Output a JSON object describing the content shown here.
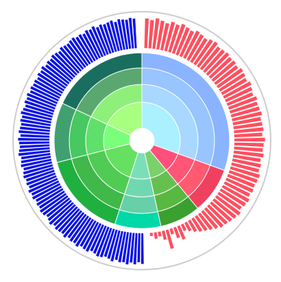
{
  "chart_data": {
    "type": "sunburst",
    "title": "",
    "outer_ring": {
      "type": "radial-bar",
      "ylim": [
        0,
        1
      ],
      "series": [
        {
          "color": "#ff4f5e",
          "values": [
            0.92,
            0.88,
            0.95,
            0.9,
            0.85,
            0.93,
            0.89,
            0.96,
            0.91,
            0.87,
            0.94,
            0.9,
            0.86,
            0.92,
            0.95,
            0.88,
            0.9,
            0.93,
            0.89,
            0.91,
            0.87,
            0.94,
            0.92,
            0.88,
            0.95,
            0.9,
            0.86,
            0.93,
            0.89,
            0.91,
            0.94,
            0.88,
            0.9,
            0.92,
            0.87,
            0.95,
            0.91,
            0.89,
            0.93,
            0.86,
            0.9,
            0.88,
            0.94,
            0.92,
            0.89,
            0.91,
            0.87,
            0.93,
            0.9,
            0.85,
            0.92,
            0.88,
            0.84,
            0.8,
            0.78,
            0.7,
            0.62,
            0.55,
            0.48,
            0.4,
            0.3,
            0.22,
            0.45,
            0.35,
            0.18,
            0.6,
            0.28,
            0.15,
            0.2,
            0.1
          ]
        },
        {
          "color": "#0a14e6",
          "values": [
            0.95,
            0.9,
            0.97,
            0.92,
            0.99,
            0.94,
            0.96,
            0.91,
            0.98,
            0.93,
            0.9,
            0.95,
            0.97,
            0.92,
            0.89,
            0.96,
            0.94,
            0.91,
            0.98,
            0.93,
            0.95,
            0.9,
            0.97,
            0.92,
            0.94,
            0.96,
            0.91,
            0.98,
            0.93,
            0.89,
            0.95,
            0.97,
            0.92,
            0.94,
            0.9,
            0.96,
            0.93,
            0.98,
            0.91,
            0.95,
            0.92,
            0.97,
            0.94,
            0.9,
            0.96,
            0.93,
            0.91,
            0.98,
            0.95,
            0.92,
            0.94,
            0.97,
            0.9,
            0.96,
            0.93,
            0.91,
            0.95,
            0.92,
            0.98,
            0.94,
            0.9,
            0.96,
            0.93,
            0.97,
            0.91,
            0.95,
            0.92,
            0.94,
            0.9,
            0.96,
            0.93,
            0.98,
            0.91,
            0.95,
            0.92,
            0.97,
            0.94,
            0.9,
            0.96,
            0.93,
            0.91,
            0.95,
            0.97,
            0.92,
            0.94,
            0.9,
            0.96,
            0.93,
            0.98,
            0.91,
            0.95,
            0.92,
            0.94,
            0.97,
            0.9,
            0.96,
            0.93,
            0.91,
            0.95,
            0.92
          ]
        }
      ]
    },
    "inner_rings": [
      {
        "ring": 1,
        "segments": [
          {
            "color": "#aaf0ff",
            "share": 0.305
          },
          {
            "color": "#ff4f7a",
            "share": 0.085
          },
          {
            "color": "#7ad06a",
            "share": 0.075
          },
          {
            "color": "#7adfb8",
            "share": 0.085
          },
          {
            "color": "#66e060",
            "share": 0.16
          },
          {
            "color": "#7aff7a",
            "share": 0.11
          },
          {
            "color": "#a8ff80",
            "share": 0.18
          }
        ]
      },
      {
        "ring": 2,
        "segments": [
          {
            "color": "#a8d8ff",
            "share": 0.305
          },
          {
            "color": "#ff5577",
            "share": 0.085
          },
          {
            "color": "#66c050",
            "share": 0.075
          },
          {
            "color": "#70d8b0",
            "share": 0.085
          },
          {
            "color": "#50cc55",
            "share": 0.16
          },
          {
            "color": "#5fe06a",
            "share": 0.11
          },
          {
            "color": "#8ef07a",
            "share": 0.18
          }
        ]
      },
      {
        "ring": 3,
        "segments": [
          {
            "color": "#98c4ff",
            "share": 0.305
          },
          {
            "color": "#ff5a70",
            "share": 0.085
          },
          {
            "color": "#58b840",
            "share": 0.075
          },
          {
            "color": "#66d0a8",
            "share": 0.085
          },
          {
            "color": "#40b84a",
            "share": 0.16
          },
          {
            "color": "#48c860",
            "share": 0.11
          },
          {
            "color": "#5aa870",
            "share": 0.18
          }
        ]
      },
      {
        "ring": 4,
        "segments": [
          {
            "color": "#8ab4ff",
            "share": 0.305
          },
          {
            "color": "#f04060",
            "share": 0.085
          },
          {
            "color": "#3aa030",
            "share": 0.075
          },
          {
            "color": "#00d8a8",
            "share": 0.085
          },
          {
            "color": "#20b040",
            "share": 0.16
          },
          {
            "color": "#40a070",
            "share": 0.11
          },
          {
            "color": "#1a6e60",
            "share": 0.18
          }
        ]
      }
    ]
  }
}
